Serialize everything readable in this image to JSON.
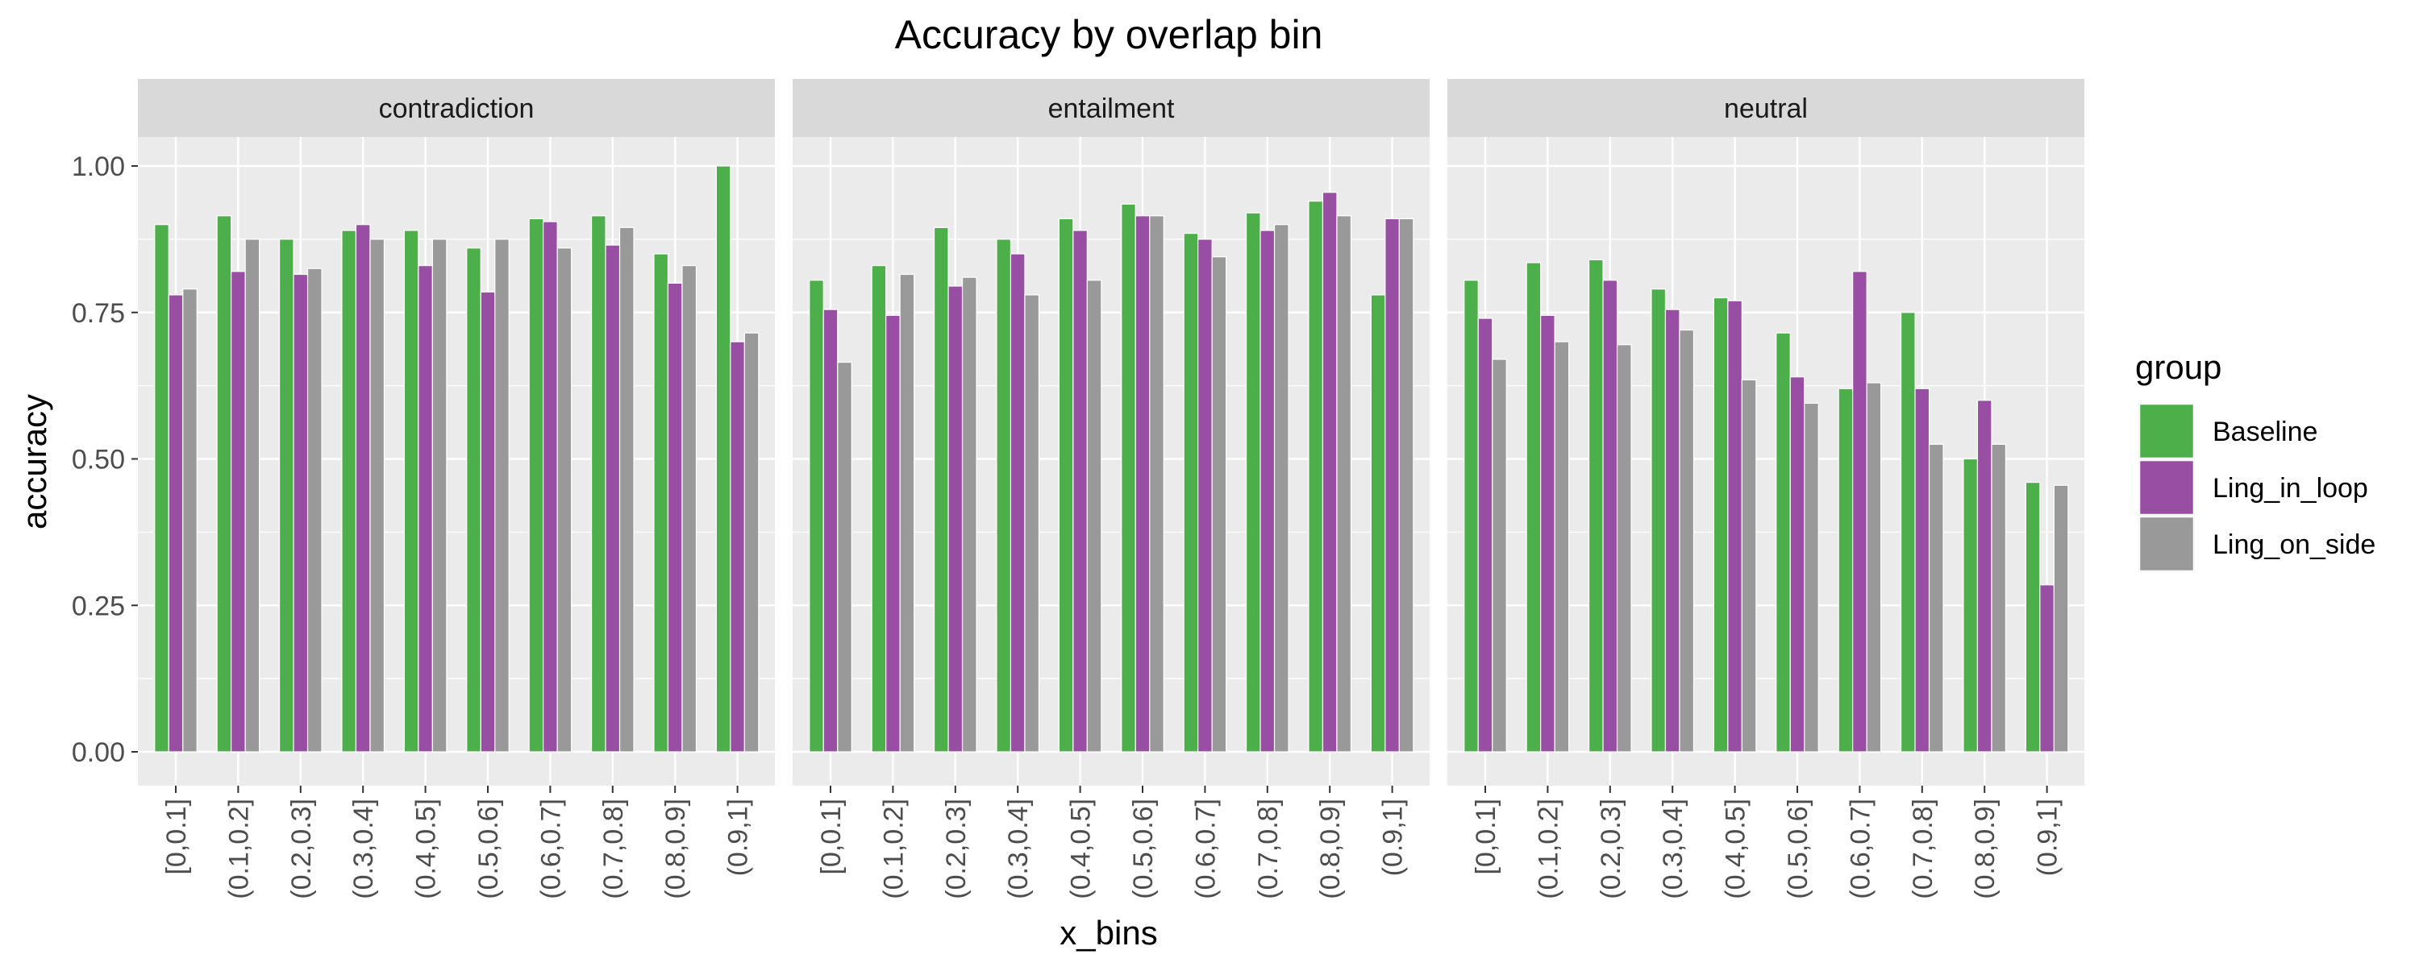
{
  "chart_data": {
    "type": "bar",
    "title": "Accuracy by overlap bin",
    "xlabel": "x_bins",
    "ylabel": "accuracy",
    "ylim": [
      0,
      1.05
    ],
    "yticks": [
      0,
      0.25,
      0.5,
      0.75,
      1
    ],
    "ytick_labels": [
      "0.00",
      "0.25",
      "0.50",
      "0.75",
      "1.00"
    ],
    "grid": true,
    "legend": {
      "title": "group",
      "position": "right"
    },
    "categories": [
      "[0,0.1]",
      "(0.1,0.2]",
      "(0.2,0.3]",
      "(0.3,0.4]",
      "(0.4,0.5]",
      "(0.5,0.6]",
      "(0.6,0.7]",
      "(0.7,0.8]",
      "(0.8,0.9]",
      "(0.9,1]"
    ],
    "groups": [
      {
        "name": "Baseline",
        "color": "#4daf4a"
      },
      {
        "name": "Ling_in_loop",
        "color": "#984ea3"
      },
      {
        "name": "Ling_on_side",
        "color": "#999999"
      }
    ],
    "facets": [
      {
        "label": "contradiction",
        "series": [
          {
            "name": "Baseline",
            "values": [
              0.9,
              0.915,
              0.875,
              0.89,
              0.89,
              0.86,
              0.91,
              0.915,
              0.85,
              1.0
            ]
          },
          {
            "name": "Ling_in_loop",
            "values": [
              0.78,
              0.82,
              0.815,
              0.9,
              0.83,
              0.785,
              0.905,
              0.865,
              0.8,
              0.7
            ]
          },
          {
            "name": "Ling_on_side",
            "values": [
              0.79,
              0.875,
              0.825,
              0.875,
              0.875,
              0.875,
              0.86,
              0.895,
              0.83,
              0.715
            ]
          }
        ]
      },
      {
        "label": "entailment",
        "series": [
          {
            "name": "Baseline",
            "values": [
              0.805,
              0.83,
              0.895,
              0.875,
              0.91,
              0.935,
              0.885,
              0.92,
              0.94,
              0.78
            ]
          },
          {
            "name": "Ling_in_loop",
            "values": [
              0.755,
              0.745,
              0.795,
              0.85,
              0.89,
              0.915,
              0.875,
              0.89,
              0.955,
              0.91
            ]
          },
          {
            "name": "Ling_on_side",
            "values": [
              0.665,
              0.815,
              0.81,
              0.78,
              0.805,
              0.915,
              0.845,
              0.9,
              0.915,
              0.91
            ]
          }
        ]
      },
      {
        "label": "neutral",
        "series": [
          {
            "name": "Baseline",
            "values": [
              0.805,
              0.835,
              0.84,
              0.79,
              0.775,
              0.715,
              0.62,
              0.75,
              0.5,
              0.46
            ]
          },
          {
            "name": "Ling_in_loop",
            "values": [
              0.74,
              0.745,
              0.805,
              0.755,
              0.77,
              0.64,
              0.82,
              0.62,
              0.6,
              0.285
            ]
          },
          {
            "name": "Ling_on_side",
            "values": [
              0.67,
              0.7,
              0.695,
              0.72,
              0.635,
              0.595,
              0.63,
              0.525,
              0.525,
              0.455
            ]
          }
        ]
      }
    ]
  }
}
